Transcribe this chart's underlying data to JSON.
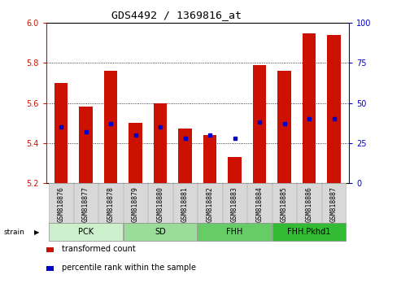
{
  "title": "GDS4492 / 1369816_at",
  "samples": [
    "GSM818876",
    "GSM818877",
    "GSM818878",
    "GSM818879",
    "GSM818880",
    "GSM818881",
    "GSM818882",
    "GSM818883",
    "GSM818884",
    "GSM818885",
    "GSM818886",
    "GSM818887"
  ],
  "transformed_count": [
    5.7,
    5.58,
    5.76,
    5.5,
    5.6,
    5.47,
    5.44,
    5.33,
    5.79,
    5.76,
    5.95,
    5.94
  ],
  "percentile_rank": [
    35,
    32,
    37,
    30,
    35,
    28,
    30,
    28,
    38,
    37,
    40,
    40
  ],
  "ylim_left": [
    5.2,
    6.0
  ],
  "ylim_right": [
    0,
    100
  ],
  "yticks_left": [
    5.2,
    5.4,
    5.6,
    5.8,
    6.0
  ],
  "yticks_right": [
    0,
    25,
    50,
    75,
    100
  ],
  "group_data": [
    {
      "label": "PCK",
      "start": 0,
      "end": 2,
      "color": "#ccf0cc"
    },
    {
      "label": "SD",
      "start": 3,
      "end": 5,
      "color": "#99dd99"
    },
    {
      "label": "FHH",
      "start": 6,
      "end": 8,
      "color": "#66cc66"
    },
    {
      "label": "FHH.Pkhd1",
      "start": 9,
      "end": 11,
      "color": "#33bb33"
    }
  ],
  "bar_color": "#cc1100",
  "dot_color": "#0000cc",
  "base_value": 5.2,
  "bar_width": 0.55,
  "legend_items": [
    {
      "label": "transformed count",
      "color": "#cc1100"
    },
    {
      "label": "percentile rank within the sample",
      "color": "#0000cc"
    }
  ],
  "strain_label": "strain",
  "title_color": "#000000",
  "left_axis_color": "#cc1100",
  "right_axis_color": "#0000cc",
  "background_color": "#ffffff",
  "plot_bg_color": "#ffffff"
}
